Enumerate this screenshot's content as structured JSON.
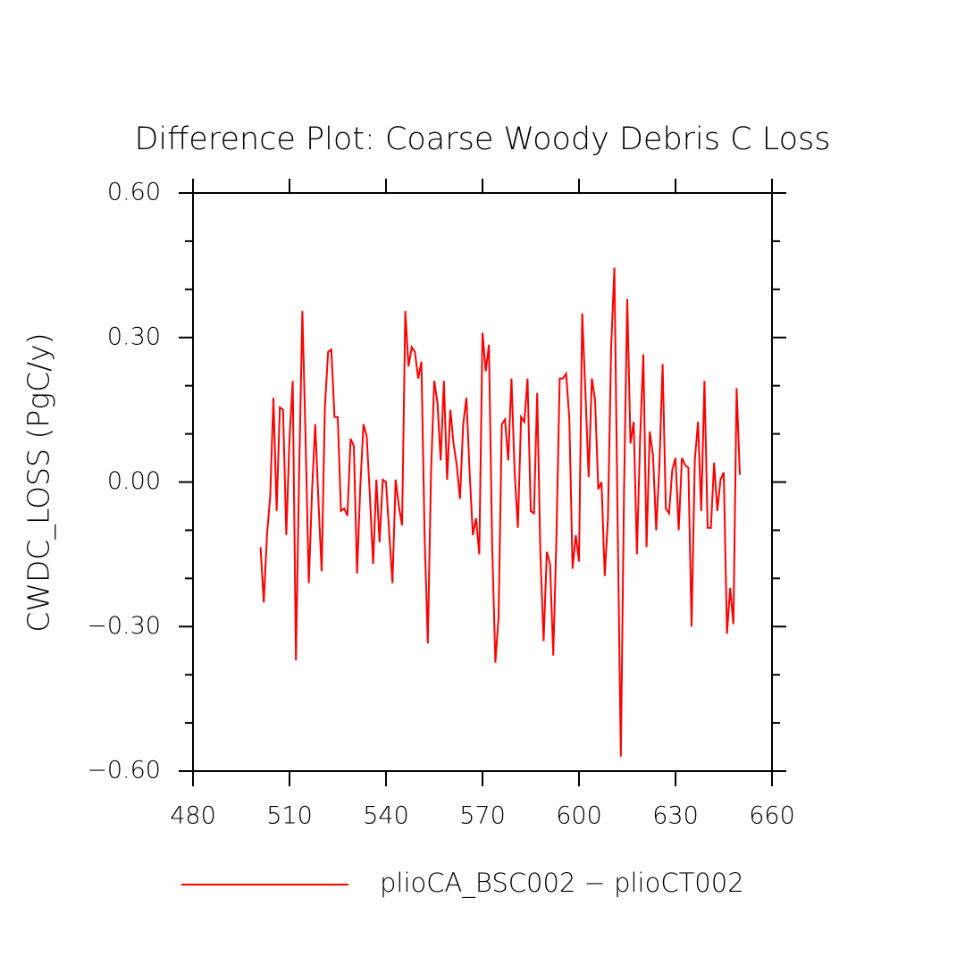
{
  "chart_data": {
    "type": "line",
    "title": "Difference Plot: Coarse Woody Debris C Loss",
    "y_label": "CWDC_LOSS  (PgC/y)",
    "x": [
      501,
      502,
      503,
      504,
      505,
      506,
      507,
      508,
      509,
      510,
      511,
      512,
      513,
      514,
      515,
      516,
      517,
      518,
      519,
      520,
      521,
      522,
      523,
      524,
      525,
      526,
      527,
      528,
      529,
      530,
      531,
      532,
      533,
      534,
      535,
      536,
      537,
      538,
      539,
      540,
      541,
      542,
      543,
      544,
      545,
      546,
      547,
      548,
      549,
      550,
      551,
      552,
      553,
      554,
      555,
      556,
      557,
      558,
      559,
      560,
      561,
      562,
      563,
      564,
      565,
      566,
      567,
      568,
      569,
      570,
      571,
      572,
      573,
      574,
      575,
      576,
      577,
      578,
      579,
      580,
      581,
      582,
      583,
      584,
      585,
      586,
      587,
      588,
      589,
      590,
      591,
      592,
      593,
      594,
      595,
      596,
      597,
      598,
      599,
      600,
      601,
      602,
      603,
      604,
      605,
      606,
      607,
      608,
      609,
      610,
      611,
      612,
      613,
      614,
      615,
      616,
      617,
      618,
      619,
      620,
      621,
      622,
      623,
      624,
      625,
      626,
      627,
      628,
      629,
      630,
      631,
      632,
      633,
      634,
      635,
      636,
      637,
      638,
      639,
      640,
      641,
      642,
      643,
      644,
      645,
      646,
      647,
      648,
      649,
      650
    ],
    "series": [
      {
        "name": "plioCA_BSC002 − plioCT002",
        "color": "#ff0000",
        "values": [
          -0.135,
          -0.25,
          -0.11,
          -0.03,
          0.175,
          -0.06,
          0.155,
          0.15,
          -0.11,
          0.09,
          0.21,
          -0.37,
          0.02,
          0.355,
          0.09,
          -0.21,
          -0.02,
          0.12,
          -0.04,
          -0.185,
          0.155,
          0.27,
          0.275,
          0.135,
          0.135,
          -0.06,
          -0.055,
          -0.07,
          0.09,
          0.075,
          -0.19,
          -0.01,
          0.12,
          0.095,
          -0.03,
          -0.17,
          0.005,
          -0.125,
          0.005,
          0.0,
          -0.105,
          -0.21,
          0.005,
          -0.05,
          -0.09,
          0.355,
          0.24,
          0.28,
          0.27,
          0.215,
          0.25,
          -0.11,
          -0.335,
          0.02,
          0.21,
          0.165,
          0.045,
          0.21,
          0.005,
          0.15,
          0.08,
          0.035,
          -0.035,
          0.12,
          0.175,
          0.02,
          -0.11,
          -0.075,
          -0.15,
          0.31,
          0.23,
          0.285,
          -0.13,
          -0.375,
          -0.28,
          0.12,
          0.13,
          0.045,
          0.215,
          0.02,
          -0.095,
          0.135,
          0.125,
          0.215,
          -0.06,
          -0.065,
          0.185,
          -0.15,
          -0.33,
          -0.145,
          -0.17,
          -0.36,
          -0.11,
          0.215,
          0.215,
          0.225,
          0.13,
          -0.18,
          -0.11,
          -0.165,
          0.35,
          0.185,
          0.01,
          0.215,
          0.17,
          -0.015,
          0.0,
          -0.195,
          -0.075,
          0.28,
          0.445,
          -0.075,
          -0.57,
          -0.02,
          0.38,
          0.08,
          0.125,
          -0.15,
          0.09,
          0.265,
          -0.135,
          0.105,
          0.055,
          -0.1,
          0.035,
          0.245,
          -0.055,
          -0.065,
          0.025,
          0.05,
          -0.1,
          0.05,
          0.035,
          0.03,
          -0.3,
          0.045,
          0.125,
          -0.06,
          0.21,
          -0.095,
          -0.095,
          0.04,
          -0.06,
          0.005,
          0.02,
          -0.315,
          -0.22,
          -0.295,
          0.195,
          0.015
        ]
      }
    ],
    "xlim": [
      480,
      660
    ],
    "xticks": [
      480,
      510,
      540,
      570,
      600,
      630,
      660
    ],
    "ylim": [
      -0.6,
      0.6
    ],
    "yticks": [
      {
        "value": 0.6,
        "label": "0.60"
      },
      {
        "value": 0.3,
        "label": "0.30"
      },
      {
        "value": 0,
        "label": "0.00"
      },
      {
        "value": -0.3,
        "label": "−0.30"
      },
      {
        "value": -0.6,
        "label": "−0.60"
      }
    ],
    "yminorticks": [
      -0.5,
      -0.4,
      -0.2,
      -0.1,
      0.1,
      0.2,
      0.4,
      0.5
    ]
  }
}
